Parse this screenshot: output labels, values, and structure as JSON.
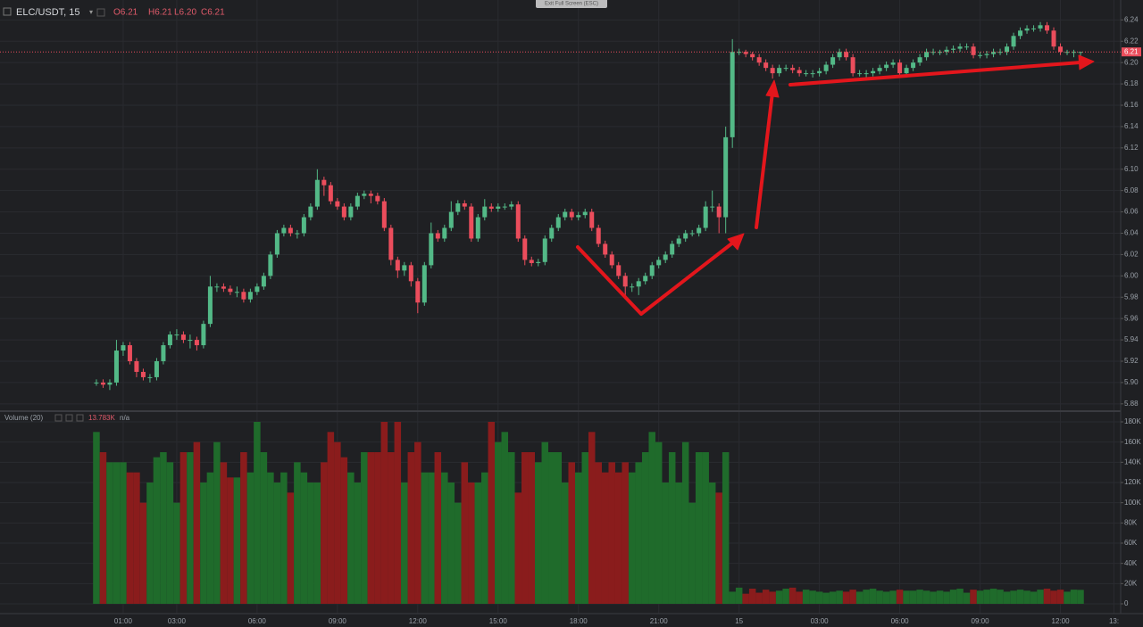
{
  "chart_data": [
    {
      "type": "candlestick",
      "symbol": "ELC/USDT, 15",
      "ohlc_labels": [
        "O6.21",
        "H6.21",
        "L6.20",
        "C6.21"
      ],
      "notice": "Exit Full Screen (ESC)",
      "up_color": "#53b987",
      "down_color": "#eb4d5c",
      "grid": true,
      "last_price": {
        "value": 6.21,
        "label": "6.21"
      },
      "xlim": [
        -14.4,
        153
      ],
      "xticks": [
        {
          "value": 4,
          "label": "01:00"
        },
        {
          "value": 12,
          "label": "03:00"
        },
        {
          "value": 24,
          "label": "06:00"
        },
        {
          "value": 36,
          "label": "09:00"
        },
        {
          "value": 48,
          "label": "12:00"
        },
        {
          "value": 60,
          "label": "15:00"
        },
        {
          "value": 72,
          "label": "18:00"
        },
        {
          "value": 84,
          "label": "21:00"
        },
        {
          "value": 96,
          "label": "15"
        },
        {
          "value": 108,
          "label": "03:00"
        },
        {
          "value": 120,
          "label": "06:00"
        },
        {
          "value": 132,
          "label": "09:00"
        },
        {
          "value": 144,
          "label": "12:00"
        },
        {
          "value": 152,
          "label": "13:"
        }
      ],
      "ylim": [
        5.874,
        6.257
      ],
      "yticks": [
        {
          "value": 5.88,
          "label": "5.88"
        },
        {
          "value": 5.9,
          "label": "5.90"
        },
        {
          "value": 5.92,
          "label": "5.92"
        },
        {
          "value": 5.94,
          "label": "5.94"
        },
        {
          "value": 5.96,
          "label": "5.96"
        },
        {
          "value": 5.98,
          "label": "5.98"
        },
        {
          "value": 6.0,
          "label": "6.00"
        },
        {
          "value": 6.02,
          "label": "6.02"
        },
        {
          "value": 6.04,
          "label": "6.04"
        },
        {
          "value": 6.06,
          "label": "6.06"
        },
        {
          "value": 6.08,
          "label": "6.08"
        },
        {
          "value": 6.1,
          "label": "6.10"
        },
        {
          "value": 6.12,
          "label": "6.12"
        },
        {
          "value": 6.14,
          "label": "6.14"
        },
        {
          "value": 6.16,
          "label": "6.16"
        },
        {
          "value": 6.18,
          "label": "6.18"
        },
        {
          "value": 6.2,
          "label": "6.20"
        },
        {
          "value": 6.22,
          "label": "6.22"
        },
        {
          "value": 6.24,
          "label": "6.24"
        }
      ],
      "candles": [
        [
          5.9,
          5.903,
          5.897,
          5.9
        ],
        [
          5.9,
          5.903,
          5.895,
          5.898
        ],
        [
          5.898,
          5.903,
          5.893,
          5.9
        ],
        [
          5.9,
          5.94,
          5.897,
          5.93
        ],
        [
          5.93,
          5.938,
          5.925,
          5.935
        ],
        [
          5.935,
          5.938,
          5.917,
          5.92
        ],
        [
          5.92,
          5.923,
          5.905,
          5.91
        ],
        [
          5.91,
          5.913,
          5.902,
          5.905
        ],
        [
          5.905,
          5.908,
          5.9,
          5.905
        ],
        [
          5.905,
          5.923,
          5.902,
          5.92
        ],
        [
          5.92,
          5.938,
          5.917,
          5.935
        ],
        [
          5.935,
          5.948,
          5.932,
          5.945
        ],
        [
          5.945,
          5.95,
          5.94,
          5.945
        ],
        [
          5.945,
          5.948,
          5.937,
          5.94
        ],
        [
          5.94,
          5.945,
          5.932,
          5.94
        ],
        [
          5.94,
          5.943,
          5.93,
          5.935
        ],
        [
          5.935,
          5.958,
          5.932,
          5.955
        ],
        [
          5.955,
          6.0,
          5.952,
          5.99
        ],
        [
          5.99,
          5.993,
          5.985,
          5.99
        ],
        [
          5.99,
          5.993,
          5.985,
          5.988
        ],
        [
          5.988,
          5.991,
          5.982,
          5.985
        ],
        [
          5.985,
          5.99,
          5.98,
          5.985
        ],
        [
          5.985,
          5.988,
          5.975,
          5.978
        ],
        [
          5.978,
          5.988,
          5.975,
          5.985
        ],
        [
          5.985,
          5.993,
          5.982,
          5.99
        ],
        [
          5.99,
          6.003,
          5.987,
          6.0
        ],
        [
          6.0,
          6.023,
          5.997,
          6.02
        ],
        [
          6.02,
          6.043,
          6.017,
          6.04
        ],
        [
          6.04,
          6.048,
          6.037,
          6.045
        ],
        [
          6.045,
          6.048,
          6.037,
          6.04
        ],
        [
          6.04,
          6.043,
          6.035,
          6.04
        ],
        [
          6.04,
          6.058,
          6.037,
          6.055
        ],
        [
          6.055,
          6.068,
          6.052,
          6.065
        ],
        [
          6.065,
          6.1,
          6.062,
          6.09
        ],
        [
          6.09,
          6.093,
          6.075,
          6.085
        ],
        [
          6.085,
          6.088,
          6.067,
          6.07
        ],
        [
          6.07,
          6.073,
          6.062,
          6.065
        ],
        [
          6.065,
          6.068,
          6.052,
          6.055
        ],
        [
          6.055,
          6.068,
          6.052,
          6.065
        ],
        [
          6.065,
          6.078,
          6.062,
          6.075
        ],
        [
          6.075,
          6.08,
          6.072,
          6.077
        ],
        [
          6.077,
          6.08,
          6.068,
          6.075
        ],
        [
          6.075,
          6.078,
          6.067,
          6.07
        ],
        [
          6.07,
          6.073,
          6.042,
          6.045
        ],
        [
          6.045,
          6.048,
          6.01,
          6.015
        ],
        [
          6.015,
          6.018,
          5.998,
          6.005
        ],
        [
          6.005,
          6.013,
          6.0,
          6.01
        ],
        [
          6.01,
          6.013,
          5.99,
          5.995
        ],
        [
          5.995,
          5.998,
          5.965,
          5.975
        ],
        [
          5.975,
          6.013,
          5.972,
          6.01
        ],
        [
          6.01,
          6.05,
          6.007,
          6.04
        ],
        [
          6.04,
          6.043,
          6.032,
          6.035
        ],
        [
          6.035,
          6.048,
          6.032,
          6.045
        ],
        [
          6.045,
          6.07,
          6.042,
          6.06
        ],
        [
          6.06,
          6.071,
          6.057,
          6.068
        ],
        [
          6.068,
          6.071,
          6.062,
          6.065
        ],
        [
          6.065,
          6.068,
          6.032,
          6.035
        ],
        [
          6.035,
          6.058,
          6.032,
          6.055
        ],
        [
          6.055,
          6.072,
          6.052,
          6.065
        ],
        [
          6.065,
          6.068,
          6.06,
          6.063
        ],
        [
          6.063,
          6.068,
          6.06,
          6.065
        ],
        [
          6.065,
          6.068,
          6.062,
          6.065
        ],
        [
          6.065,
          6.07,
          6.062,
          6.067
        ],
        [
          6.067,
          6.07,
          6.032,
          6.035
        ],
        [
          6.035,
          6.038,
          6.01,
          6.015
        ],
        [
          6.015,
          6.018,
          6.009,
          6.012
        ],
        [
          6.012,
          6.016,
          6.009,
          6.013
        ],
        [
          6.013,
          6.038,
          6.01,
          6.035
        ],
        [
          6.035,
          6.048,
          6.032,
          6.045
        ],
        [
          6.045,
          6.058,
          6.042,
          6.055
        ],
        [
          6.055,
          6.063,
          6.052,
          6.06
        ],
        [
          6.06,
          6.063,
          6.052,
          6.055
        ],
        [
          6.055,
          6.06,
          6.052,
          6.057
        ],
        [
          6.057,
          6.063,
          6.054,
          6.06
        ],
        [
          6.06,
          6.063,
          6.042,
          6.045
        ],
        [
          6.045,
          6.048,
          6.027,
          6.03
        ],
        [
          6.03,
          6.033,
          6.017,
          6.02
        ],
        [
          6.02,
          6.023,
          6.007,
          6.01
        ],
        [
          6.01,
          6.013,
          5.997,
          6.0
        ],
        [
          6.0,
          6.003,
          5.98,
          5.99
        ],
        [
          5.99,
          5.993,
          5.985,
          5.99
        ],
        [
          5.99,
          5.998,
          5.982,
          5.995
        ],
        [
          5.995,
          6.003,
          5.992,
          6.0
        ],
        [
          6.0,
          6.013,
          5.997,
          6.01
        ],
        [
          6.01,
          6.018,
          6.007,
          6.015
        ],
        [
          6.015,
          6.023,
          6.012,
          6.02
        ],
        [
          6.02,
          6.033,
          6.017,
          6.03
        ],
        [
          6.03,
          6.038,
          6.027,
          6.035
        ],
        [
          6.035,
          6.043,
          6.032,
          6.04
        ],
        [
          6.04,
          6.043,
          6.037,
          6.04
        ],
        [
          6.04,
          6.048,
          6.037,
          6.045
        ],
        [
          6.045,
          6.07,
          6.042,
          6.065
        ],
        [
          6.065,
          6.08,
          6.06,
          6.065
        ],
        [
          6.065,
          6.068,
          6.04,
          6.055
        ],
        [
          6.055,
          6.14,
          6.04,
          6.13
        ],
        [
          6.13,
          6.222,
          6.12,
          6.21
        ],
        [
          6.21,
          6.213,
          6.207,
          6.21
        ],
        [
          6.21,
          6.212,
          6.205,
          6.208
        ],
        [
          6.208,
          6.21,
          6.202,
          6.205
        ],
        [
          6.205,
          6.208,
          6.197,
          6.2
        ],
        [
          6.2,
          6.203,
          6.192,
          6.195
        ],
        [
          6.195,
          6.198,
          6.185,
          6.19
        ],
        [
          6.19,
          6.198,
          6.187,
          6.195
        ],
        [
          6.195,
          6.198,
          6.192,
          6.195
        ],
        [
          6.195,
          6.198,
          6.19,
          6.193
        ],
        [
          6.193,
          6.196,
          6.187,
          6.19
        ],
        [
          6.19,
          6.193,
          6.187,
          6.19
        ],
        [
          6.19,
          6.193,
          6.186,
          6.19
        ],
        [
          6.19,
          6.195,
          6.187,
          6.192
        ],
        [
          6.192,
          6.201,
          6.189,
          6.198
        ],
        [
          6.198,
          6.208,
          6.195,
          6.205
        ],
        [
          6.205,
          6.213,
          6.202,
          6.21
        ],
        [
          6.21,
          6.213,
          6.202,
          6.205
        ],
        [
          6.205,
          6.208,
          6.187,
          6.19
        ],
        [
          6.19,
          6.193,
          6.187,
          6.19
        ],
        [
          6.19,
          6.193,
          6.186,
          6.19
        ],
        [
          6.19,
          6.195,
          6.187,
          6.192
        ],
        [
          6.192,
          6.198,
          6.189,
          6.195
        ],
        [
          6.195,
          6.201,
          6.192,
          6.198
        ],
        [
          6.198,
          6.203,
          6.195,
          6.2
        ],
        [
          6.2,
          6.203,
          6.187,
          6.19
        ],
        [
          6.19,
          6.198,
          6.187,
          6.195
        ],
        [
          6.195,
          6.203,
          6.192,
          6.2
        ],
        [
          6.2,
          6.208,
          6.197,
          6.205
        ],
        [
          6.205,
          6.213,
          6.202,
          6.21
        ],
        [
          6.21,
          6.213,
          6.207,
          6.21
        ],
        [
          6.21,
          6.212,
          6.207,
          6.21
        ],
        [
          6.21,
          6.215,
          6.207,
          6.212
        ],
        [
          6.212,
          6.216,
          6.209,
          6.213
        ],
        [
          6.213,
          6.218,
          6.21,
          6.215
        ],
        [
          6.215,
          6.218,
          6.212,
          6.215
        ],
        [
          6.215,
          6.218,
          6.204,
          6.207
        ],
        [
          6.207,
          6.21,
          6.204,
          6.207
        ],
        [
          6.207,
          6.211,
          6.204,
          6.208
        ],
        [
          6.208,
          6.213,
          6.205,
          6.21
        ],
        [
          6.21,
          6.213,
          6.207,
          6.21
        ],
        [
          6.21,
          6.218,
          6.207,
          6.215
        ],
        [
          6.215,
          6.228,
          6.212,
          6.225
        ],
        [
          6.225,
          6.233,
          6.222,
          6.23
        ],
        [
          6.23,
          6.235,
          6.227,
          6.232
        ],
        [
          6.232,
          6.235,
          6.229,
          6.232
        ],
        [
          6.232,
          6.238,
          6.229,
          6.235
        ],
        [
          6.235,
          6.238,
          6.227,
          6.23
        ],
        [
          6.23,
          6.233,
          6.212,
          6.215
        ],
        [
          6.215,
          6.218,
          6.207,
          6.21
        ],
        [
          6.21,
          6.212,
          6.207,
          6.21
        ],
        [
          6.21,
          6.212,
          6.205,
          6.21
        ],
        [
          6.21,
          6.21,
          6.2,
          6.21
        ]
      ]
    },
    {
      "type": "volume",
      "title": "Volume (20)",
      "legend_value": "13.783K",
      "legend_extra": "n/a",
      "up_color": "#1f6b2b",
      "down_color": "#8a1c1c",
      "grid": true,
      "ylim": [
        -9700,
        189700
      ],
      "yticks": [
        0,
        {
          "value": 20000,
          "label": "20K"
        },
        {
          "value": 40000,
          "label": "40K"
        },
        {
          "value": 60000,
          "label": "60K"
        },
        {
          "value": 80000,
          "label": "80K"
        },
        {
          "value": 100000,
          "label": "100K"
        },
        {
          "value": 120000,
          "label": "120K"
        },
        {
          "value": 140000,
          "label": "140K"
        },
        {
          "value": 160000,
          "label": "160K"
        },
        {
          "value": 180000,
          "label": "180K"
        }
      ],
      "values": [
        170000,
        150000,
        140000,
        140000,
        140000,
        130000,
        130000,
        100000,
        120000,
        145000,
        150000,
        140000,
        100000,
        150000,
        150000,
        160000,
        120000,
        130000,
        160000,
        140000,
        125000,
        125000,
        150000,
        130000,
        180000,
        150000,
        130000,
        120000,
        130000,
        110000,
        140000,
        130000,
        120000,
        120000,
        140000,
        170000,
        160000,
        145000,
        130000,
        120000,
        150000,
        150000,
        150000,
        180000,
        150000,
        180000,
        120000,
        150000,
        160000,
        130000,
        130000,
        150000,
        130000,
        120000,
        100000,
        140000,
        120000,
        120000,
        130000,
        180000,
        160000,
        170000,
        150000,
        110000,
        150000,
        150000,
        140000,
        160000,
        150000,
        150000,
        120000,
        140000,
        130000,
        150000,
        170000,
        140000,
        130000,
        140000,
        130000,
        140000,
        130000,
        140000,
        150000,
        170000,
        160000,
        120000,
        150000,
        120000,
        160000,
        100000,
        150000,
        150000,
        120000,
        110000,
        150000,
        12000,
        16000,
        10000,
        15000,
        11000,
        14000,
        12000,
        13000,
        15000,
        16000,
        12000,
        14000,
        13000,
        12000,
        11000,
        12000,
        13000,
        12000,
        14000,
        12000,
        14000,
        15000,
        13000,
        12000,
        13000,
        14000,
        13000,
        13000,
        14000,
        13000,
        12000,
        13000,
        12000,
        14000,
        15000,
        11000,
        14000,
        13000,
        14000,
        15000,
        14000,
        12000,
        13000,
        14000,
        13000,
        12000,
        14000,
        15000,
        13000,
        14000,
        12000,
        14000,
        13783
      ]
    }
  ]
}
